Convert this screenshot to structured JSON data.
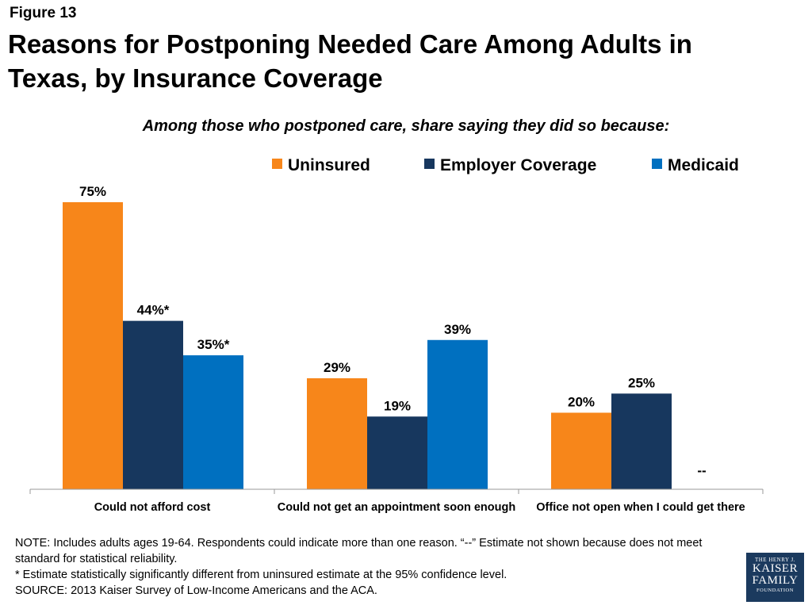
{
  "figure_label": "Figure 13",
  "chart_data": {
    "type": "bar",
    "title": "Reasons for Postponing Needed Care Among Adults in Texas, by Insurance Coverage",
    "subtitle": "Among those who postponed care, share saying they did so because:",
    "categories": [
      "Could not afford cost",
      "Could not get an appointment soon enough",
      "Office not open when I could get there"
    ],
    "series": [
      {
        "name": "Uninsured",
        "color": "#f7861a",
        "values": [
          75,
          29,
          20
        ],
        "labels": [
          "75%",
          "29%",
          "20%"
        ]
      },
      {
        "name": "Employer Coverage",
        "color": "#17375e",
        "values": [
          44,
          19,
          25
        ],
        "labels": [
          "44%*",
          "19%",
          "25%"
        ]
      },
      {
        "name": "Medicaid",
        "color": "#0070c0",
        "values": [
          35,
          39,
          null
        ],
        "labels": [
          "35%*",
          "39%",
          "--"
        ]
      }
    ],
    "ylim": [
      0,
      80
    ],
    "grid": false,
    "legend_position": "top-right"
  },
  "notes": {
    "note": "NOTE: Includes adults ages 19-64. Respondents could indicate more than one reason. “--” Estimate not shown because does not meet standard for statistical reliability.",
    "significance": "* Estimate statistically significantly different from uninsured estimate at the 95% confidence level.",
    "source": "SOURCE: 2013 Kaiser Survey of Low-Income Americans and the ACA."
  },
  "logo": {
    "line1": "THE HENRY J.",
    "line2": "KAISER",
    "line3": "FAMILY",
    "line4": "FOUNDATION"
  }
}
